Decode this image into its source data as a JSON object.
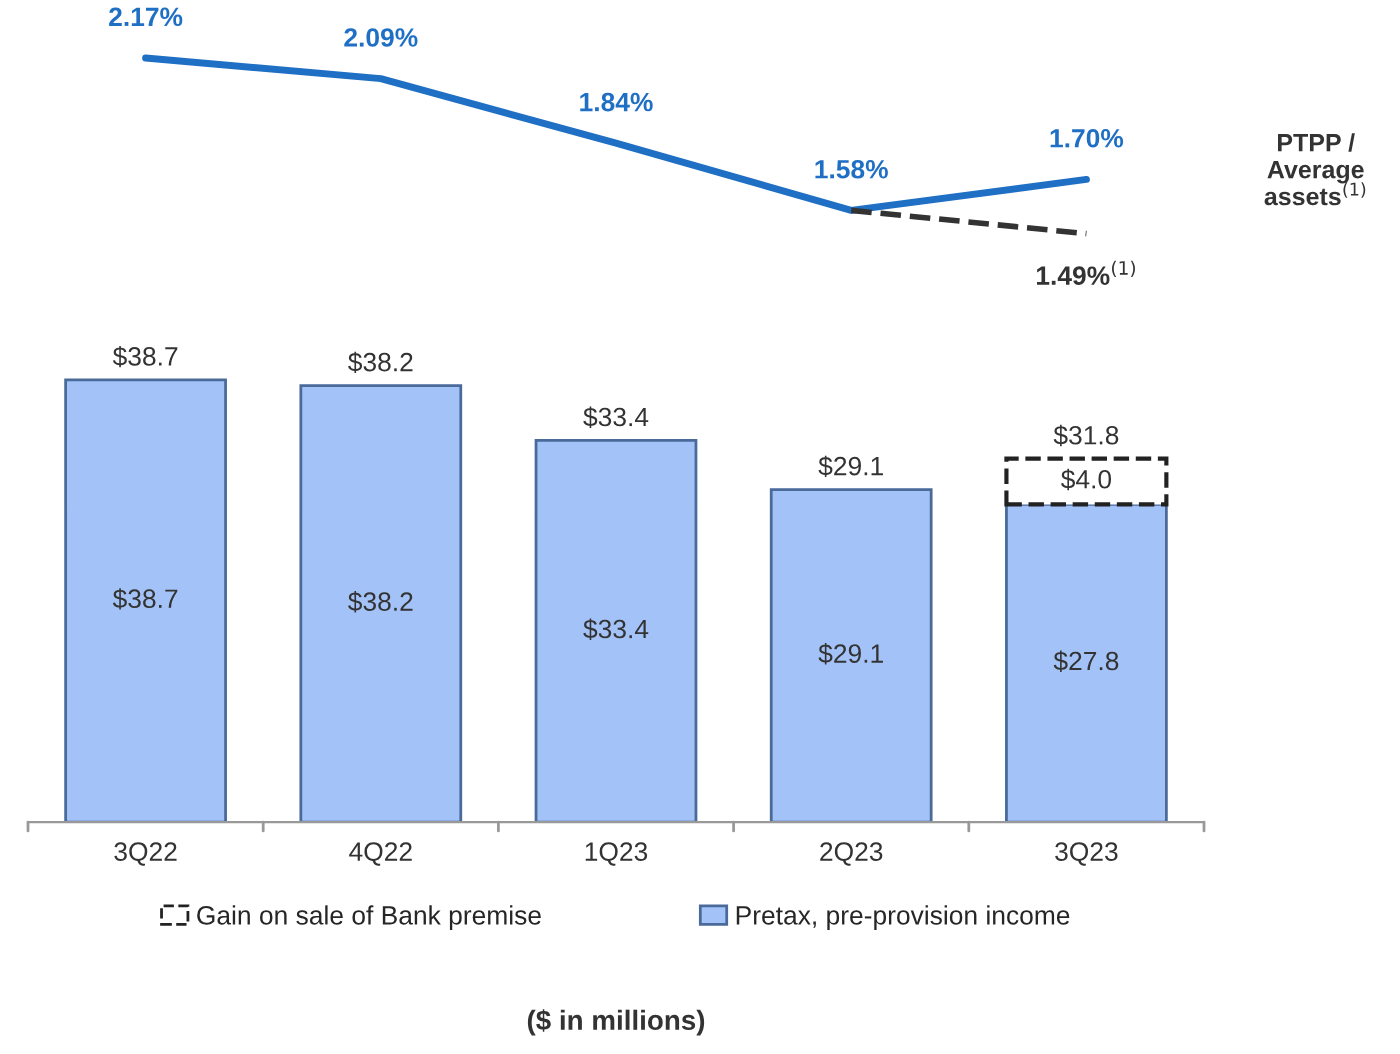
{
  "chart_data": [
    {
      "type": "line",
      "categories": [
        null,
        null,
        null,
        null,
        null
      ],
      "tick_labels": false,
      "grid": false,
      "legend": false,
      "marker": "none",
      "series": [
        {
          "color": "#1f6fc5",
          "line_style": "solid",
          "values": [
            2.17,
            2.09,
            1.84,
            1.58,
            1.7
          ],
          "value_labels": [
            "2.17%",
            "2.09%",
            "1.84%",
            "1.58%",
            "1.70%"
          ]
        },
        {
          "color": "#333333",
          "line_style": "dashed",
          "values": [
            null,
            null,
            null,
            1.58,
            1.49
          ],
          "value_labels": [
            null,
            null,
            null,
            null,
            "1.49%$^{(1)}$"
          ]
        }
      ],
      "annotations": [
        "PTPP / Average assets$^{(1)}$"
      ]
    },
    {
      "type": "bar",
      "stacked": true,
      "categories": [
        "3Q22",
        "4Q22",
        "1Q23",
        "2Q23",
        "3Q23"
      ],
      "tick_labels": "x",
      "grid": false,
      "legend": "bottom",
      "series": [
        {
          "name": "Pretax, pre-provision income",
          "color": "#a3c2f7",
          "values": [
            38.7,
            38.2,
            33.4,
            29.1,
            27.8
          ],
          "value_labels": [
            "$38.7",
            "$38.2",
            "$33.4",
            "$29.1",
            "$27.8"
          ]
        },
        {
          "name": "Gain on sale of Bank premise",
          "color": "#ffffff",
          "line_style": "dashed",
          "values": [
            null,
            null,
            null,
            null,
            4.0
          ],
          "value_labels": [
            null,
            null,
            null,
            null,
            "$4.0"
          ]
        }
      ],
      "totals": [
        "$38.7",
        "$38.2",
        "$33.4",
        "$29.1",
        "$31.8"
      ],
      "annotations": [
        "($ in millions)"
      ]
    }
  ]
}
